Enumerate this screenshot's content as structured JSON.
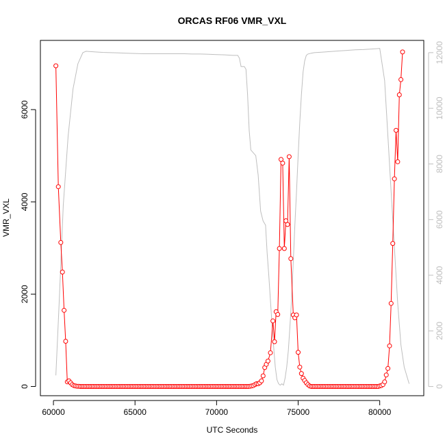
{
  "chart_data": {
    "type": "line",
    "title": "ORCAS RF06 VMR_VXL",
    "xlabel": "UTC Seconds",
    "ylabel": "VMR_VXL",
    "xlim": [
      59200,
      82700
    ],
    "ylim": [
      -200,
      7500
    ],
    "y2lim": [
      -330,
      12440
    ],
    "x_ticks": [
      60000,
      65000,
      70000,
      75000,
      80000
    ],
    "y_ticks": [
      0,
      2000,
      4000,
      6000
    ],
    "y2_ticks": [
      0,
      2000,
      4000,
      6000,
      8000,
      10000,
      12000
    ],
    "primary_color": "#ff0000",
    "secondary_color": "#bebebe",
    "grid": false,
    "series": [
      {
        "values": [
          [
            60150,
            6950
          ],
          [
            60300,
            4330
          ],
          [
            60450,
            3120
          ],
          [
            60550,
            2480
          ],
          [
            60650,
            1650
          ],
          [
            60750,
            980
          ],
          [
            60850,
            100
          ],
          [
            60950,
            120
          ],
          [
            61050,
            80
          ],
          [
            61150,
            40
          ],
          [
            61250,
            20
          ],
          [
            61350,
            10
          ],
          [
            61450,
            5
          ],
          [
            61550,
            3
          ],
          [
            61650,
            0
          ],
          [
            61750,
            0
          ],
          [
            61850,
            0
          ],
          [
            61950,
            0
          ],
          [
            62050,
            0
          ],
          [
            62150,
            0
          ],
          [
            62250,
            0
          ],
          [
            62350,
            0
          ],
          [
            62450,
            0
          ],
          [
            62550,
            0
          ],
          [
            62650,
            0
          ],
          [
            62750,
            0
          ],
          [
            62850,
            0
          ],
          [
            62950,
            0
          ],
          [
            63050,
            0
          ],
          [
            63150,
            0
          ],
          [
            63250,
            0
          ],
          [
            63350,
            0
          ],
          [
            63450,
            0
          ],
          [
            63550,
            0
          ],
          [
            63650,
            0
          ],
          [
            63750,
            0
          ],
          [
            63850,
            0
          ],
          [
            63950,
            0
          ],
          [
            64050,
            0
          ],
          [
            64150,
            0
          ],
          [
            64250,
            0
          ],
          [
            64350,
            0
          ],
          [
            64450,
            0
          ],
          [
            64550,
            0
          ],
          [
            64650,
            0
          ],
          [
            64750,
            0
          ],
          [
            64850,
            0
          ],
          [
            64950,
            0
          ],
          [
            65050,
            0
          ],
          [
            65150,
            0
          ],
          [
            65250,
            0
          ],
          [
            65350,
            0
          ],
          [
            65450,
            0
          ],
          [
            65550,
            0
          ],
          [
            65650,
            0
          ],
          [
            65750,
            0
          ],
          [
            65850,
            0
          ],
          [
            65950,
            0
          ],
          [
            66050,
            0
          ],
          [
            66150,
            0
          ],
          [
            66250,
            0
          ],
          [
            66350,
            0
          ],
          [
            66450,
            0
          ],
          [
            66550,
            0
          ],
          [
            66650,
            0
          ],
          [
            66750,
            0
          ],
          [
            66850,
            0
          ],
          [
            66950,
            0
          ],
          [
            67050,
            0
          ],
          [
            67150,
            0
          ],
          [
            67250,
            0
          ],
          [
            67350,
            0
          ],
          [
            67450,
            0
          ],
          [
            67550,
            0
          ],
          [
            67650,
            0
          ],
          [
            67750,
            0
          ],
          [
            67850,
            0
          ],
          [
            67950,
            0
          ],
          [
            68050,
            0
          ],
          [
            68150,
            0
          ],
          [
            68250,
            0
          ],
          [
            68350,
            0
          ],
          [
            68450,
            0
          ],
          [
            68550,
            0
          ],
          [
            68650,
            0
          ],
          [
            68750,
            0
          ],
          [
            68850,
            0
          ],
          [
            68950,
            0
          ],
          [
            69050,
            0
          ],
          [
            69150,
            0
          ],
          [
            69250,
            0
          ],
          [
            69350,
            0
          ],
          [
            69450,
            0
          ],
          [
            69550,
            0
          ],
          [
            69650,
            0
          ],
          [
            69750,
            0
          ],
          [
            69850,
            0
          ],
          [
            69950,
            0
          ],
          [
            70050,
            0
          ],
          [
            70150,
            0
          ],
          [
            70250,
            0
          ],
          [
            70350,
            0
          ],
          [
            70450,
            0
          ],
          [
            70550,
            0
          ],
          [
            70650,
            0
          ],
          [
            70750,
            0
          ],
          [
            70850,
            0
          ],
          [
            70950,
            0
          ],
          [
            71050,
            0
          ],
          [
            71150,
            0
          ],
          [
            71250,
            0
          ],
          [
            71350,
            0
          ],
          [
            71450,
            0
          ],
          [
            71550,
            0
          ],
          [
            71650,
            0
          ],
          [
            71750,
            0
          ],
          [
            71850,
            0
          ],
          [
            71950,
            0
          ],
          [
            72050,
            5
          ],
          [
            72150,
            10
          ],
          [
            72250,
            20
          ],
          [
            72350,
            40
          ],
          [
            72450,
            60
          ],
          [
            72550,
            60
          ],
          [
            72650,
            80
          ],
          [
            72750,
            120
          ],
          [
            72850,
            230
          ],
          [
            72950,
            410
          ],
          [
            73050,
            480
          ],
          [
            73150,
            550
          ],
          [
            73300,
            730
          ],
          [
            73450,
            1420
          ],
          [
            73550,
            970
          ],
          [
            73650,
            1620
          ],
          [
            73750,
            1560
          ],
          [
            73850,
            2990
          ],
          [
            73950,
            4920
          ],
          [
            74050,
            4840
          ],
          [
            74150,
            2990
          ],
          [
            74250,
            3590
          ],
          [
            74350,
            3510
          ],
          [
            74450,
            4980
          ],
          [
            74550,
            2770
          ],
          [
            74700,
            1550
          ],
          [
            74800,
            1490
          ],
          [
            74900,
            1550
          ],
          [
            75000,
            740
          ],
          [
            75100,
            420
          ],
          [
            75200,
            280
          ],
          [
            75300,
            180
          ],
          [
            75400,
            130
          ],
          [
            75500,
            80
          ],
          [
            75600,
            40
          ],
          [
            75700,
            10
          ],
          [
            75800,
            0
          ],
          [
            75900,
            0
          ],
          [
            76000,
            0
          ],
          [
            76100,
            0
          ],
          [
            76200,
            0
          ],
          [
            76300,
            0
          ],
          [
            76400,
            0
          ],
          [
            76500,
            0
          ],
          [
            76600,
            0
          ],
          [
            76700,
            0
          ],
          [
            76800,
            0
          ],
          [
            76900,
            0
          ],
          [
            77000,
            0
          ],
          [
            77100,
            0
          ],
          [
            77200,
            0
          ],
          [
            77300,
            0
          ],
          [
            77400,
            0
          ],
          [
            77500,
            0
          ],
          [
            77600,
            0
          ],
          [
            77700,
            0
          ],
          [
            77800,
            0
          ],
          [
            77900,
            0
          ],
          [
            78000,
            0
          ],
          [
            78100,
            0
          ],
          [
            78200,
            0
          ],
          [
            78300,
            0
          ],
          [
            78400,
            0
          ],
          [
            78500,
            0
          ],
          [
            78600,
            0
          ],
          [
            78700,
            0
          ],
          [
            78800,
            0
          ],
          [
            78900,
            0
          ],
          [
            79000,
            0
          ],
          [
            79100,
            0
          ],
          [
            79200,
            0
          ],
          [
            79300,
            0
          ],
          [
            79400,
            0
          ],
          [
            79500,
            0
          ],
          [
            79600,
            0
          ],
          [
            79700,
            0
          ],
          [
            79800,
            0
          ],
          [
            79900,
            0
          ],
          [
            80000,
            10
          ],
          [
            80100,
            20
          ],
          [
            80200,
            40
          ],
          [
            80300,
            100
          ],
          [
            80400,
            250
          ],
          [
            80500,
            390
          ],
          [
            80600,
            880
          ],
          [
            80700,
            1800
          ],
          [
            80800,
            3100
          ],
          [
            80900,
            4500
          ],
          [
            81000,
            5550
          ],
          [
            81100,
            4870
          ],
          [
            81200,
            6320
          ],
          [
            81300,
            6650
          ],
          [
            81400,
            7250
          ]
        ]
      },
      {
        "axis": "right",
        "values": [
          [
            60150,
            400
          ],
          [
            60350,
            3000
          ],
          [
            60600,
            6500
          ],
          [
            60900,
            9000
          ],
          [
            61200,
            10700
          ],
          [
            61500,
            11600
          ],
          [
            61800,
            12000
          ],
          [
            62000,
            12050
          ],
          [
            62500,
            12030
          ],
          [
            63000,
            12010
          ],
          [
            63500,
            12000
          ],
          [
            64000,
            11990
          ],
          [
            64500,
            11980
          ],
          [
            65000,
            11970
          ],
          [
            65500,
            11960
          ],
          [
            66000,
            11960
          ],
          [
            66500,
            11960
          ],
          [
            67000,
            11960
          ],
          [
            67500,
            11960
          ],
          [
            68000,
            11960
          ],
          [
            68500,
            11950
          ],
          [
            69000,
            11950
          ],
          [
            69500,
            11940
          ],
          [
            70000,
            11930
          ],
          [
            70500,
            11920
          ],
          [
            71000,
            11900
          ],
          [
            71300,
            11900
          ],
          [
            71400,
            11800
          ],
          [
            71500,
            11500
          ],
          [
            71700,
            11500
          ],
          [
            71800,
            11400
          ],
          [
            71900,
            10500
          ],
          [
            72000,
            9200
          ],
          [
            72100,
            8500
          ],
          [
            72250,
            8400
          ],
          [
            72400,
            8300
          ],
          [
            72550,
            7600
          ],
          [
            72700,
            6300
          ],
          [
            72850,
            5950
          ],
          [
            73000,
            5800
          ],
          [
            73100,
            4800
          ],
          [
            73200,
            4000
          ],
          [
            73300,
            3100
          ],
          [
            73400,
            2200
          ],
          [
            73500,
            1400
          ],
          [
            73600,
            700
          ],
          [
            73700,
            250
          ],
          [
            73800,
            100
          ],
          [
            73900,
            50
          ],
          [
            74000,
            100
          ],
          [
            74100,
            50
          ],
          [
            74200,
            300
          ],
          [
            74300,
            700
          ],
          [
            74400,
            1300
          ],
          [
            74500,
            2200
          ],
          [
            74600,
            3200
          ],
          [
            74700,
            4500
          ],
          [
            74800,
            5800
          ],
          [
            74900,
            7000
          ],
          [
            75000,
            8300
          ],
          [
            75100,
            9500
          ],
          [
            75200,
            10500
          ],
          [
            75300,
            11300
          ],
          [
            75400,
            11700
          ],
          [
            75500,
            11900
          ],
          [
            75600,
            11950
          ],
          [
            75800,
            11980
          ],
          [
            76000,
            12000
          ],
          [
            76500,
            12020
          ],
          [
            77000,
            12040
          ],
          [
            77500,
            12060
          ],
          [
            78000,
            12080
          ],
          [
            78500,
            12100
          ],
          [
            79000,
            12110
          ],
          [
            79500,
            12130
          ],
          [
            80000,
            12150
          ],
          [
            80300,
            11000
          ],
          [
            80500,
            9000
          ],
          [
            80700,
            7000
          ],
          [
            80900,
            5000
          ],
          [
            81100,
            3000
          ],
          [
            81300,
            1500
          ],
          [
            81500,
            700
          ],
          [
            81700,
            300
          ],
          [
            81800,
            100
          ]
        ]
      }
    ]
  }
}
